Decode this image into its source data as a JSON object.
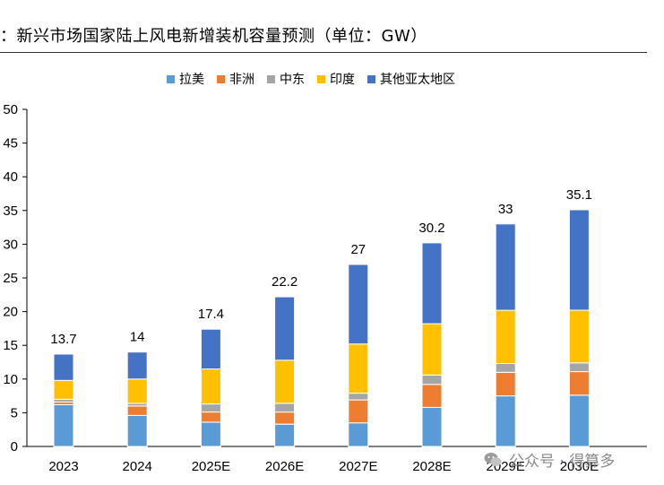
{
  "chart_data": {
    "type": "bar",
    "stacked": true,
    "title": "：新兴市场国家陆上风电新增装机容量预测（单位：GW）",
    "categories": [
      "2023",
      "2024",
      "2025E",
      "2026E",
      "2027E",
      "2028E",
      "2029E",
      "2030E"
    ],
    "series": [
      {
        "name": "拉美",
        "color": "#5B9BD5",
        "values": [
          6.2,
          4.6,
          3.6,
          3.3,
          3.5,
          5.8,
          7.5,
          7.6
        ]
      },
      {
        "name": "非洲",
        "color": "#ED7D31",
        "values": [
          0.4,
          1.4,
          1.5,
          1.8,
          3.4,
          3.4,
          3.5,
          3.5
        ]
      },
      {
        "name": "中东",
        "color": "#A5A5A5",
        "values": [
          0.4,
          0.4,
          1.2,
          1.3,
          1.0,
          1.4,
          1.3,
          1.3
        ]
      },
      {
        "name": "印度",
        "color": "#FFC000",
        "values": [
          2.8,
          3.6,
          5.2,
          6.4,
          7.3,
          7.6,
          7.9,
          7.8
        ]
      },
      {
        "name": "其他亚太地区",
        "color": "#4472C4",
        "values": [
          3.9,
          4.0,
          5.9,
          9.4,
          11.8,
          12.0,
          12.8,
          14.9
        ]
      }
    ],
    "totals": [
      "13.7",
      "14",
      "17.4",
      "22.2",
      "27",
      "30.2",
      "33",
      "35.1"
    ],
    "yticks": [
      "0",
      "5",
      "10",
      "15",
      "20",
      "25",
      "30",
      "35",
      "40",
      "45",
      "50"
    ],
    "ylim": [
      0,
      50
    ],
    "grid": false,
    "legend_position": "top"
  },
  "watermark": {
    "text": "公众号 · 得算多",
    "icon": "wechat-icon"
  }
}
